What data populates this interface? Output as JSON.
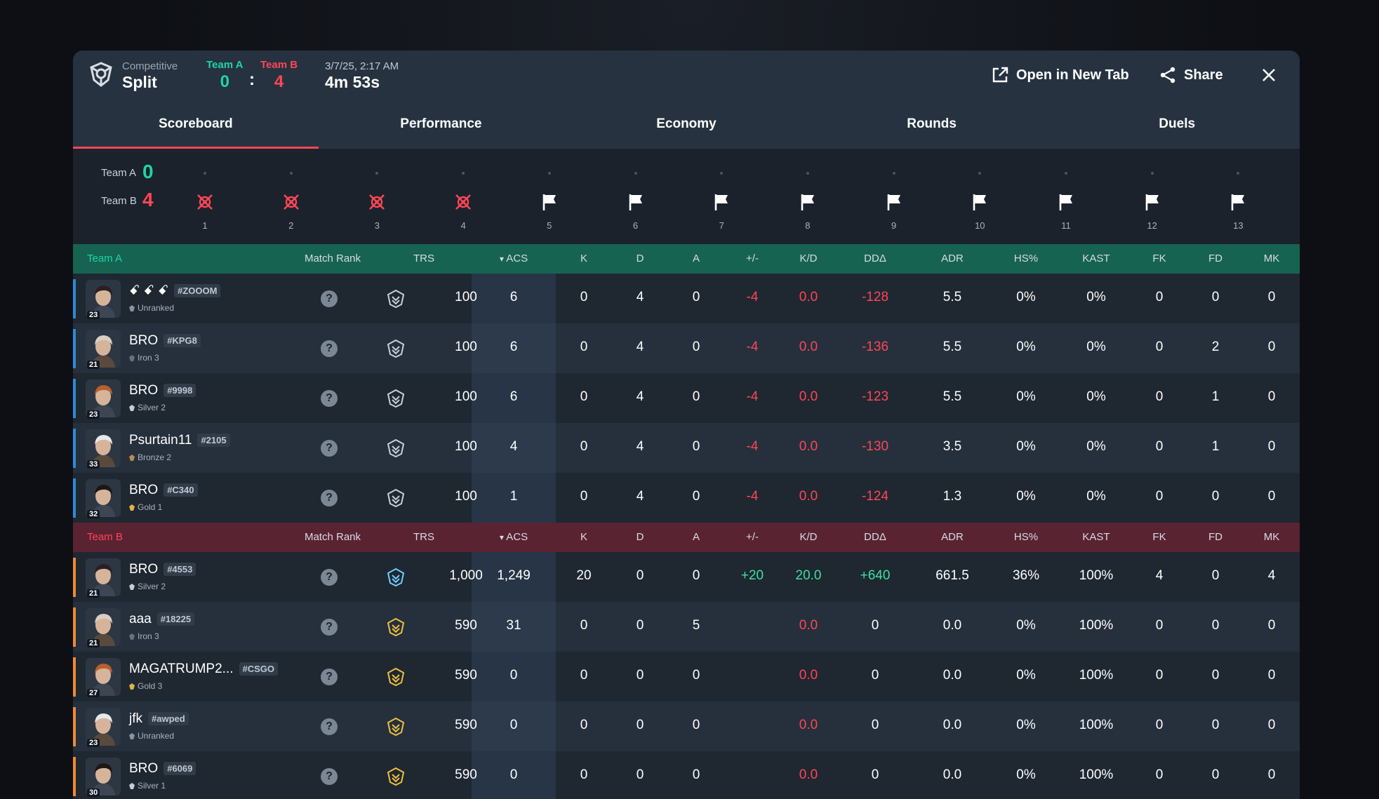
{
  "header": {
    "mode": "Competitive",
    "map": "Split",
    "team_a": {
      "label": "Team A",
      "score": "0",
      "color": "#1fd4a8"
    },
    "team_b": {
      "label": "Team B",
      "score": "4",
      "color": "#ff4655"
    },
    "colon": ":",
    "date": "3/7/25, 2:17 AM",
    "duration": "4m 53s",
    "open_new_tab": "Open in New Tab",
    "share": "Share"
  },
  "tabs": [
    "Scoreboard",
    "Performance",
    "Economy",
    "Rounds",
    "Duels"
  ],
  "active_tab": 0,
  "timeline": {
    "team_a_label": "Team A",
    "team_a_score": "0",
    "team_b_label": "Team B",
    "team_b_score": "4",
    "rounds": [
      {
        "num": "1",
        "icon": "elimination-icon"
      },
      {
        "num": "2",
        "icon": "elimination-icon"
      },
      {
        "num": "3",
        "icon": "elimination-icon"
      },
      {
        "num": "4",
        "icon": "elimination-icon"
      },
      {
        "num": "5",
        "icon": "flag-icon"
      },
      {
        "num": "6",
        "icon": "flag-icon"
      },
      {
        "num": "7",
        "icon": "flag-icon"
      },
      {
        "num": "8",
        "icon": "flag-icon"
      },
      {
        "num": "9",
        "icon": "flag-icon"
      },
      {
        "num": "10",
        "icon": "flag-icon"
      },
      {
        "num": "11",
        "icon": "flag-icon"
      },
      {
        "num": "12",
        "icon": "flag-icon"
      },
      {
        "num": "13",
        "icon": "flag-icon"
      }
    ]
  },
  "columns": {
    "match_rank": "Match Rank",
    "trs": "TRS",
    "acs": "ACS",
    "k": "K",
    "d": "D",
    "a": "A",
    "pm": "+/-",
    "kd": "K/D",
    "dda": "DDΔ",
    "adr": "ADR",
    "hs": "HS%",
    "kast": "KAST",
    "fk": "FK",
    "fd": "FD",
    "mk": "MK"
  },
  "team_a": {
    "title": "Team A",
    "players": [
      {
        "name": "ꗃ ꗃ ꗃ",
        "tag": "#ZOOOM",
        "rank": "Unranked",
        "level": "23",
        "q": "?",
        "trs": "100",
        "acs": "6",
        "k": "0",
        "d": "4",
        "a": "0",
        "pm": "-4",
        "kd": "0.0",
        "dda": "-128",
        "adr": "5.5",
        "hs": "0%",
        "kast": "0%",
        "fk": "0",
        "fd": "0",
        "mk": "0"
      },
      {
        "name": "BRO",
        "tag": "#KPG8",
        "rank": "Iron 3",
        "level": "21",
        "q": "?",
        "trs": "100",
        "acs": "6",
        "k": "0",
        "d": "4",
        "a": "0",
        "pm": "-4",
        "kd": "0.0",
        "dda": "-136",
        "adr": "5.5",
        "hs": "0%",
        "kast": "0%",
        "fk": "0",
        "fd": "2",
        "mk": "0"
      },
      {
        "name": "BRO",
        "tag": "#9998",
        "rank": "Silver 2",
        "level": "23",
        "q": "?",
        "trs": "100",
        "acs": "6",
        "k": "0",
        "d": "4",
        "a": "0",
        "pm": "-4",
        "kd": "0.0",
        "dda": "-123",
        "adr": "5.5",
        "hs": "0%",
        "kast": "0%",
        "fk": "0",
        "fd": "1",
        "mk": "0"
      },
      {
        "name": "Psurtain11",
        "tag": "#2105",
        "rank": "Bronze 2",
        "level": "33",
        "q": "?",
        "trs": "100",
        "acs": "4",
        "k": "0",
        "d": "4",
        "a": "0",
        "pm": "-4",
        "kd": "0.0",
        "dda": "-130",
        "adr": "3.5",
        "hs": "0%",
        "kast": "0%",
        "fk": "0",
        "fd": "1",
        "mk": "0"
      },
      {
        "name": "BRO",
        "tag": "#C340",
        "rank": "Gold 1",
        "level": "32",
        "q": "?",
        "trs": "100",
        "acs": "1",
        "k": "0",
        "d": "4",
        "a": "0",
        "pm": "-4",
        "kd": "0.0",
        "dda": "-124",
        "adr": "1.3",
        "hs": "0%",
        "kast": "0%",
        "fk": "0",
        "fd": "0",
        "mk": "0"
      }
    ]
  },
  "team_b": {
    "title": "Team B",
    "players": [
      {
        "name": "BRO",
        "tag": "#4553",
        "rank": "Silver 2",
        "level": "21",
        "q": "?",
        "trs": "1,000",
        "acs": "1,249",
        "k": "20",
        "d": "0",
        "a": "0",
        "pm": "+20",
        "kd": "20.0",
        "dda": "+640",
        "adr": "661.5",
        "hs": "36%",
        "kast": "100%",
        "fk": "4",
        "fd": "0",
        "mk": "4"
      },
      {
        "name": "aaa",
        "tag": "#18225",
        "rank": "Iron 3",
        "level": "21",
        "q": "?",
        "trs": "590",
        "acs": "31",
        "k": "0",
        "d": "0",
        "a": "5",
        "pm": "",
        "kd": "0.0",
        "dda": "0",
        "adr": "0.0",
        "hs": "0%",
        "kast": "100%",
        "fk": "0",
        "fd": "0",
        "mk": "0"
      },
      {
        "name": "MAGATRUMP2...",
        "tag": "#CSGO",
        "rank": "Gold 3",
        "level": "27",
        "q": "?",
        "trs": "590",
        "acs": "0",
        "k": "0",
        "d": "0",
        "a": "0",
        "pm": "",
        "kd": "0.0",
        "dda": "0",
        "adr": "0.0",
        "hs": "0%",
        "kast": "100%",
        "fk": "0",
        "fd": "0",
        "mk": "0"
      },
      {
        "name": "jfk",
        "tag": "#awped",
        "rank": "Unranked",
        "level": "23",
        "q": "?",
        "trs": "590",
        "acs": "0",
        "k": "0",
        "d": "0",
        "a": "0",
        "pm": "",
        "kd": "0.0",
        "dda": "0",
        "adr": "0.0",
        "hs": "0%",
        "kast": "100%",
        "fk": "0",
        "fd": "0",
        "mk": "0"
      },
      {
        "name": "BRO",
        "tag": "#6069",
        "rank": "Silver 1",
        "level": "30",
        "q": "?",
        "trs": "590",
        "acs": "0",
        "k": "0",
        "d": "0",
        "a": "0",
        "pm": "",
        "kd": "0.0",
        "dda": "0",
        "adr": "0.0",
        "hs": "0%",
        "kast": "100%",
        "fk": "0",
        "fd": "0",
        "mk": "0"
      }
    ]
  },
  "colors": {
    "team_a_accent": "#1fd4a8",
    "team_b_accent": "#ff4655",
    "team_a_bar": "#2a8cd8",
    "team_b_bar": "#f08a30",
    "positive": "#3ee0a0",
    "negative": "#ff4655"
  }
}
